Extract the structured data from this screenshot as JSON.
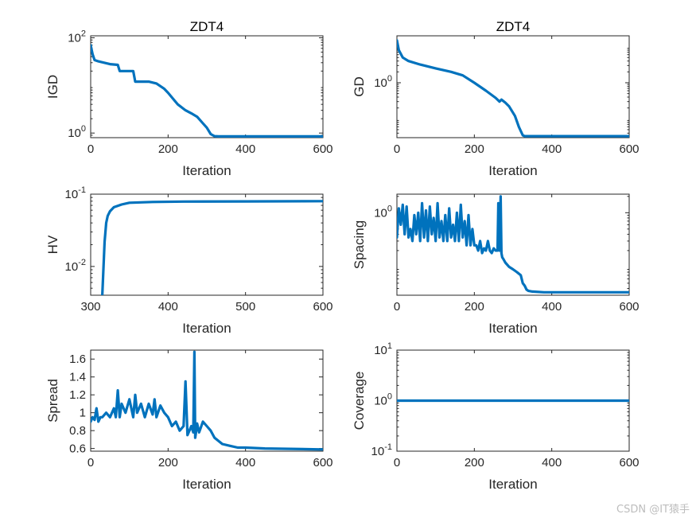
{
  "watermark": "CSDN @IT猿手",
  "line_color": "#0072bd",
  "chart_data": [
    {
      "id": "igd",
      "type": "line",
      "title": "ZDT4",
      "xlabel": "Iteration",
      "ylabel": "IGD",
      "yscale": "log",
      "xlim": [
        0,
        600
      ],
      "ylim": [
        0.8,
        110
      ],
      "xticks": [
        0,
        200,
        400,
        600
      ],
      "yticks": [
        {
          "v": 1,
          "base": "10",
          "exp": "0"
        },
        {
          "v": 100,
          "base": "10",
          "exp": "2"
        }
      ],
      "x": [
        0,
        5,
        10,
        20,
        50,
        70,
        75,
        110,
        115,
        150,
        170,
        190,
        200,
        215,
        225,
        245,
        260,
        275,
        290,
        300,
        310,
        320,
        330,
        600
      ],
      "y": [
        70,
        45,
        34,
        32,
        28,
        27,
        20,
        20,
        12,
        12,
        11,
        8.5,
        7,
        5,
        4,
        3,
        2.6,
        2.2,
        1.6,
        1.3,
        0.95,
        0.86,
        0.85,
        0.85
      ]
    },
    {
      "id": "gd",
      "type": "line",
      "title": "ZDT4",
      "xlabel": "Iteration",
      "ylabel": "GD",
      "yscale": "log",
      "xlim": [
        0,
        600
      ],
      "ylim": [
        0.03,
        20
      ],
      "xticks": [
        0,
        200,
        400,
        600
      ],
      "yticks": [
        {
          "v": 1,
          "base": "10",
          "exp": "0"
        }
      ],
      "x": [
        0,
        5,
        15,
        30,
        60,
        100,
        140,
        170,
        200,
        230,
        255,
        265,
        270,
        280,
        290,
        305,
        315,
        325,
        330,
        600
      ],
      "y": [
        15,
        8,
        5,
        4,
        3.2,
        2.5,
        2,
        1.6,
        1,
        0.6,
        0.38,
        0.3,
        0.34,
        0.28,
        0.22,
        0.12,
        0.06,
        0.035,
        0.033,
        0.033
      ]
    },
    {
      "id": "hv",
      "type": "line",
      "xlabel": "Iteration",
      "ylabel": "HV",
      "yscale": "log",
      "xlim": [
        300,
        600
      ],
      "ylim": [
        0.004,
        0.1
      ],
      "xticks": [
        300,
        400,
        500,
        600
      ],
      "yticks": [
        {
          "v": 0.01,
          "base": "10",
          "exp": "-2"
        },
        {
          "v": 0.1,
          "base": "10",
          "exp": "-1"
        }
      ],
      "x": [
        315,
        318,
        320,
        322,
        325,
        330,
        340,
        350,
        380,
        420,
        500,
        600
      ],
      "y": [
        0.004,
        0.022,
        0.04,
        0.05,
        0.058,
        0.066,
        0.072,
        0.076,
        0.078,
        0.079,
        0.0795,
        0.08
      ]
    },
    {
      "id": "spacing",
      "type": "line",
      "xlabel": "Iteration",
      "ylabel": "Spacing",
      "yscale": "log",
      "xlim": [
        0,
        600
      ],
      "ylim": [
        0.03,
        2.2
      ],
      "xticks": [
        0,
        200,
        400,
        600
      ],
      "yticks": [
        {
          "v": 1,
          "base": "10",
          "exp": "0"
        }
      ],
      "x": [
        0,
        5,
        10,
        15,
        20,
        25,
        30,
        35,
        40,
        45,
        50,
        55,
        60,
        65,
        70,
        75,
        80,
        85,
        90,
        95,
        100,
        105,
        110,
        115,
        120,
        125,
        130,
        135,
        140,
        145,
        150,
        155,
        160,
        165,
        170,
        175,
        180,
        185,
        190,
        195,
        200,
        205,
        210,
        215,
        220,
        225,
        230,
        235,
        240,
        245,
        250,
        255,
        260,
        262,
        265,
        268,
        270,
        272,
        275,
        280,
        290,
        300,
        310,
        320,
        325,
        330,
        335,
        340,
        350,
        380,
        450,
        600
      ],
      "y": [
        0.35,
        1.2,
        0.6,
        1.4,
        0.4,
        1.3,
        0.35,
        0.5,
        0.3,
        0.9,
        0.4,
        1.0,
        0.3,
        1.5,
        0.35,
        1.1,
        0.3,
        1.3,
        0.4,
        0.8,
        0.3,
        1.5,
        0.35,
        0.7,
        0.3,
        0.9,
        0.3,
        1.2,
        0.35,
        0.6,
        0.3,
        1.0,
        0.3,
        1.4,
        0.35,
        0.7,
        0.25,
        0.9,
        0.25,
        0.5,
        0.25,
        0.25,
        0.2,
        0.3,
        0.18,
        0.22,
        0.2,
        0.3,
        0.2,
        0.18,
        0.22,
        0.2,
        0.2,
        1.5,
        0.2,
        2.0,
        0.18,
        0.15,
        0.14,
        0.12,
        0.1,
        0.09,
        0.08,
        0.07,
        0.05,
        0.045,
        0.038,
        0.036,
        0.035,
        0.034,
        0.034,
        0.034
      ]
    },
    {
      "id": "spread",
      "type": "line",
      "xlabel": "Iteration",
      "ylabel": "Spread",
      "yscale": "linear",
      "xlim": [
        0,
        600
      ],
      "ylim": [
        0.57,
        1.7
      ],
      "xticks": [
        0,
        200,
        400,
        600
      ],
      "yticks": [
        {
          "v": 0.6,
          "label": "0.6"
        },
        {
          "v": 0.8,
          "label": "0.8"
        },
        {
          "v": 1.0,
          "label": "1"
        },
        {
          "v": 1.2,
          "label": "1.2"
        },
        {
          "v": 1.4,
          "label": "1.4"
        },
        {
          "v": 1.6,
          "label": "1.6"
        }
      ],
      "x": [
        0,
        5,
        10,
        15,
        20,
        25,
        30,
        40,
        50,
        60,
        65,
        70,
        75,
        80,
        90,
        100,
        110,
        115,
        120,
        130,
        140,
        150,
        160,
        165,
        170,
        180,
        190,
        200,
        210,
        220,
        230,
        240,
        245,
        250,
        255,
        260,
        265,
        268,
        270,
        272,
        275,
        280,
        290,
        300,
        310,
        320,
        340,
        360,
        380,
        400,
        450,
        600
      ],
      "y": [
        0.9,
        0.95,
        0.92,
        1.05,
        0.9,
        0.95,
        0.95,
        1.0,
        0.95,
        1.05,
        0.95,
        1.25,
        0.95,
        1.1,
        1.0,
        1.15,
        0.95,
        1.2,
        1.0,
        1.1,
        0.95,
        1.1,
        0.98,
        1.15,
        0.95,
        1.08,
        1.0,
        0.95,
        0.85,
        0.9,
        0.8,
        0.85,
        1.35,
        0.75,
        0.8,
        0.85,
        0.78,
        1.68,
        0.72,
        0.78,
        0.88,
        0.78,
        0.9,
        0.85,
        0.8,
        0.72,
        0.65,
        0.63,
        0.61,
        0.61,
        0.6,
        0.59
      ]
    },
    {
      "id": "coverage",
      "type": "line",
      "xlabel": "Iteration",
      "ylabel": "Coverage",
      "yscale": "log",
      "xlim": [
        0,
        600
      ],
      "ylim": [
        0.1,
        10
      ],
      "xticks": [
        0,
        200,
        400,
        600
      ],
      "yticks": [
        {
          "v": 0.1,
          "base": "10",
          "exp": "-1"
        },
        {
          "v": 1,
          "base": "10",
          "exp": "0"
        },
        {
          "v": 10,
          "base": "10",
          "exp": "1"
        }
      ],
      "x": [
        0,
        600
      ],
      "y": [
        1,
        1
      ]
    }
  ]
}
